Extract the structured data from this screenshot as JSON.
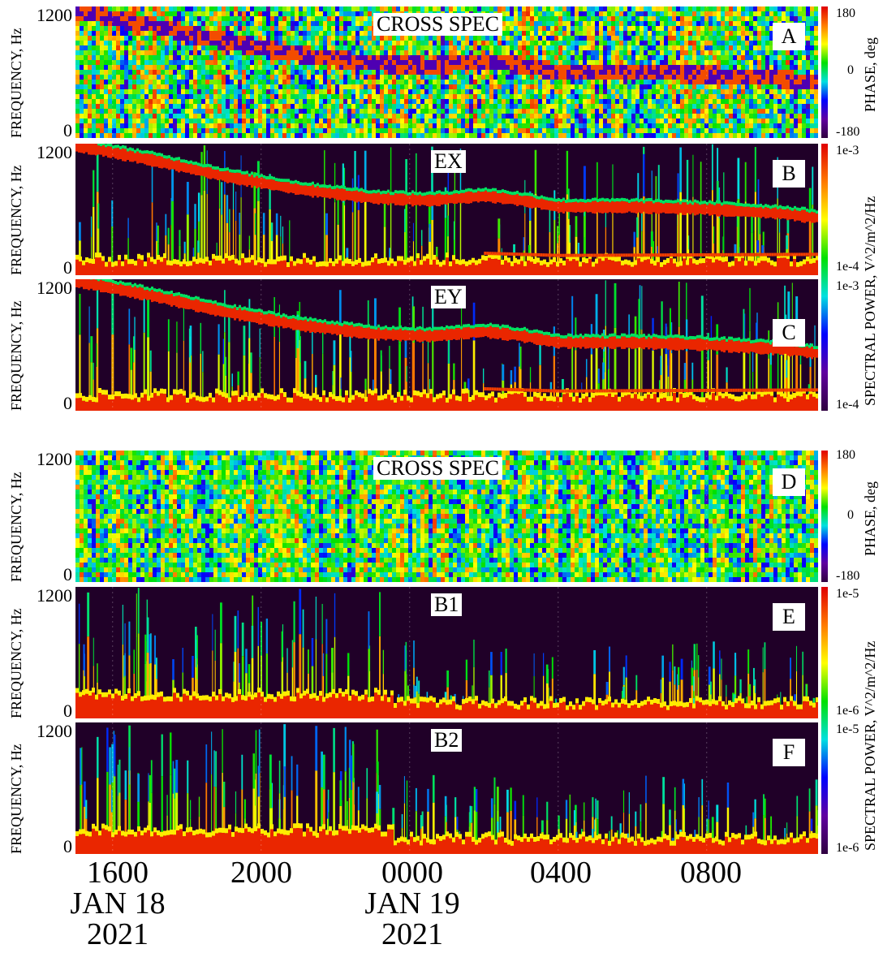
{
  "chart_data": [
    {
      "type": "heatmap",
      "panel": "A",
      "title": "CROSS SPEC",
      "ylabel": "FREQUENCY, Hz",
      "yticks": [
        "1200",
        "0"
      ],
      "ylim": [
        0,
        1200
      ],
      "colorbar_label": "PHASE, deg",
      "colorbar_ticks": [
        "180",
        "0",
        "-180"
      ],
      "colorbar_range": [
        -180,
        180
      ],
      "kind": "phase",
      "trace": [
        [
          15,
          1180
        ],
        [
          17,
          1050
        ],
        [
          19,
          900
        ],
        [
          21,
          780
        ],
        [
          23,
          700
        ],
        [
          0.5,
          680
        ],
        [
          2,
          720
        ],
        [
          3,
          680
        ],
        [
          4,
          620
        ],
        [
          6,
          620
        ],
        [
          8,
          600
        ],
        [
          10,
          560
        ],
        [
          11,
          520
        ]
      ],
      "low_band": [
        [
          18,
          250
        ],
        [
          20,
          180
        ],
        [
          2,
          200
        ],
        [
          4,
          180
        ],
        [
          11,
          190
        ]
      ]
    },
    {
      "type": "heatmap",
      "panel": "B",
      "title": "EX",
      "ylabel": "FREQUENCY, Hz",
      "yticks": [
        "1200",
        "0"
      ],
      "ylim": [
        0,
        1200
      ],
      "colorbar_label": "SPECTRAL POWER, V^2/m^2/Hz",
      "colorbar_ticks": [
        "1e-3",
        "1e-4"
      ],
      "colorbar_range": [
        0.0001,
        0.001
      ],
      "colorbar_shared_with": "C",
      "kind": "power",
      "trace": [
        [
          15,
          1180
        ],
        [
          17,
          1050
        ],
        [
          19,
          900
        ],
        [
          21,
          780
        ],
        [
          23,
          700
        ],
        [
          0.5,
          680
        ],
        [
          2,
          720
        ],
        [
          3,
          680
        ],
        [
          4,
          620
        ],
        [
          6,
          620
        ],
        [
          8,
          600
        ],
        [
          10,
          560
        ],
        [
          11,
          520
        ]
      ],
      "low_band": [
        [
          18,
          250
        ],
        [
          20,
          180
        ],
        [
          2,
          200
        ],
        [
          4,
          180
        ],
        [
          11,
          190
        ]
      ]
    },
    {
      "type": "heatmap",
      "panel": "C",
      "title": "EY",
      "ylabel": "FREQUENCY, Hz",
      "yticks": [
        "1200",
        "0"
      ],
      "ylim": [
        0,
        1200
      ],
      "colorbar_ticks": [
        "1e-3",
        "1e-4"
      ],
      "colorbar_range": [
        0.0001,
        0.001
      ],
      "kind": "power",
      "trace": [
        [
          15,
          1180
        ],
        [
          17,
          1050
        ],
        [
          19,
          900
        ],
        [
          21,
          780
        ],
        [
          23,
          700
        ],
        [
          0.5,
          680
        ],
        [
          2,
          720
        ],
        [
          3,
          680
        ],
        [
          4,
          620
        ],
        [
          6,
          620
        ],
        [
          8,
          600
        ],
        [
          10,
          560
        ],
        [
          11,
          520
        ]
      ],
      "low_band": [
        [
          18,
          250
        ],
        [
          20,
          180
        ],
        [
          2,
          200
        ],
        [
          4,
          180
        ],
        [
          11,
          190
        ]
      ]
    },
    {
      "type": "heatmap",
      "panel": "D",
      "title": "CROSS SPEC",
      "ylabel": "FREQUENCY, Hz",
      "yticks": [
        "1200",
        "0"
      ],
      "ylim": [
        0,
        1200
      ],
      "colorbar_label": "PHASE, deg",
      "colorbar_ticks": [
        "180",
        "0",
        "-180"
      ],
      "colorbar_range": [
        -180,
        180
      ],
      "kind": "phase_noise"
    },
    {
      "type": "heatmap",
      "panel": "E",
      "title": "B1",
      "ylabel": "FREQUENCY, Hz",
      "yticks": [
        "1200",
        "0"
      ],
      "ylim": [
        0,
        1200
      ],
      "colorbar_label": "SPECTRAL POWER, V^2/m^2/Hz",
      "colorbar_ticks": [
        "1e-5",
        "1e-6"
      ],
      "colorbar_range": [
        1e-06,
        1e-05
      ],
      "colorbar_shared_with": "F",
      "kind": "mag"
    },
    {
      "type": "heatmap",
      "panel": "F",
      "title": "B2",
      "ylabel": "FREQUENCY, Hz",
      "yticks": [
        "1200",
        "0"
      ],
      "ylim": [
        0,
        1200
      ],
      "colorbar_ticks": [
        "1e-5",
        "1e-6"
      ],
      "colorbar_range": [
        1e-06,
        1e-05
      ],
      "kind": "mag"
    }
  ],
  "x_axis": {
    "ticks": [
      {
        "time": "1600",
        "date": "JAN 18",
        "year": "2021"
      },
      {
        "time": "2000"
      },
      {
        "time": "0000",
        "date": "JAN 19",
        "year": "2021"
      },
      {
        "time": "0400"
      },
      {
        "time": "0800"
      }
    ],
    "range": [
      "2021-01-18 15:00",
      "2021-01-19 11:00"
    ]
  }
}
